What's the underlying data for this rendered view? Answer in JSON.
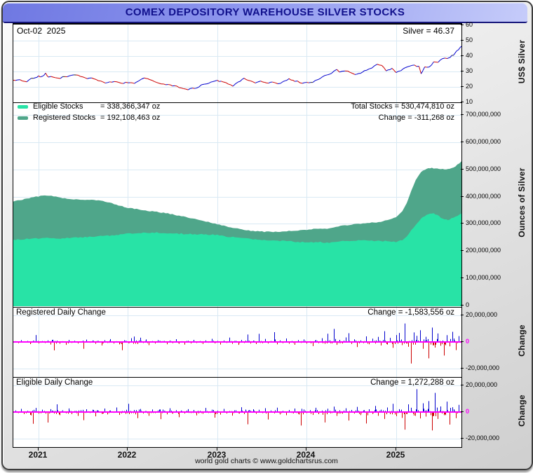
{
  "window": {
    "title": "COMEX DEPOSITORY WAREHOUSE SILVER STOCKS",
    "footer": "world gold charts © www.goldchartsrus.com"
  },
  "colors": {
    "eligible": "#28E3A6",
    "registered": "#4FA68A",
    "bar_up": "#0000CD",
    "bar_down": "#CC0000",
    "zero_line": "#FF00FF",
    "grid": "#d9e9f4",
    "title_navy": "#10108c"
  },
  "price_panel": {
    "date_label": "Oct-02  2025",
    "price_label": "Silver = 46.37",
    "axis_title": "US$ Silver",
    "ticks": [
      60,
      50,
      40,
      30,
      20,
      10
    ]
  },
  "stocks_panel": {
    "legend": [
      {
        "name": "Eligible Stocks",
        "value": "= 338,366,347 oz"
      },
      {
        "name": "Registered Stocks",
        "value": "= 192,108,463 oz"
      }
    ],
    "total_label": "Total Stocks = 530,474,810 oz",
    "change_label": "Change = -311,268 oz",
    "axis_title": "Ounces of Silver",
    "ticks": [
      {
        "label": "700,000,000",
        "v": 700
      },
      {
        "label": "600,000,000",
        "v": 600
      },
      {
        "label": "500,000,000",
        "v": 500
      },
      {
        "label": "400,000,000",
        "v": 400
      },
      {
        "label": "300,000,000",
        "v": 300
      },
      {
        "label": "200,000,000",
        "v": 200
      },
      {
        "label": "100,000,000",
        "v": 100
      },
      {
        "label": "0",
        "v": 0
      }
    ]
  },
  "registered_panel": {
    "title": "Registered Daily Change",
    "change_label": "Change = -1,583,556 oz",
    "axis_title": "Change",
    "ticks": [
      {
        "label": "20,000,000",
        "v": 20
      },
      {
        "label": "0",
        "v": 0,
        "magenta": true
      },
      {
        "label": "-20,000,000",
        "v": -20
      }
    ]
  },
  "eligible_panel": {
    "title": "Eligible Daily Change",
    "change_label": "Change = 1,272,288 oz",
    "axis_title": "Change",
    "ticks": [
      {
        "label": "20,000,000",
        "v": 20
      },
      {
        "label": "0",
        "v": 0,
        "magenta": true
      },
      {
        "label": "-20,000,000",
        "v": -20
      }
    ]
  },
  "x_axis": {
    "years": [
      "2021",
      "2022",
      "2023",
      "2024",
      "2025"
    ],
    "year_fracs": [
      0.0563,
      0.2558,
      0.4554,
      0.6549,
      0.8545
    ]
  },
  "chart_data": [
    {
      "id": "silver_price",
      "type": "line",
      "panel": "price",
      "title": "COMEX silver price, Oct 2020 - Oct 2025, last = 46.37",
      "x_range": [
        "Oct-2020",
        "Oct-2025"
      ],
      "ylim": [
        10,
        61
      ],
      "jitter": 0.45,
      "points": [
        [
          0.0,
          24.3
        ],
        [
          0.01,
          24.8
        ],
        [
          0.02,
          24.1
        ],
        [
          0.03,
          23.6
        ],
        [
          0.04,
          25.6
        ],
        [
          0.05,
          26.4
        ],
        [
          0.056,
          26.9
        ],
        [
          0.065,
          26.8
        ],
        [
          0.072,
          28.9
        ],
        [
          0.078,
          26.6
        ],
        [
          0.09,
          26.1
        ],
        [
          0.1,
          25.4
        ],
        [
          0.11,
          26.2
        ],
        [
          0.12,
          26.3
        ],
        [
          0.13,
          27.6
        ],
        [
          0.14,
          28.1
        ],
        [
          0.15,
          27.2
        ],
        [
          0.16,
          26.0
        ],
        [
          0.17,
          25.3
        ],
        [
          0.18,
          25.6
        ],
        [
          0.19,
          24.2
        ],
        [
          0.2,
          23.3
        ],
        [
          0.21,
          22.4
        ],
        [
          0.22,
          23.5
        ],
        [
          0.23,
          23.3
        ],
        [
          0.24,
          22.3
        ],
        [
          0.256,
          23.1
        ],
        [
          0.27,
          22.5
        ],
        [
          0.28,
          23.8
        ],
        [
          0.292,
          25.6
        ],
        [
          0.3,
          24.9
        ],
        [
          0.31,
          24.2
        ],
        [
          0.32,
          23.1
        ],
        [
          0.335,
          21.8
        ],
        [
          0.35,
          21.3
        ],
        [
          0.365,
          20.5
        ],
        [
          0.375,
          19.3
        ],
        [
          0.39,
          18.2
        ],
        [
          0.4,
          19.3
        ],
        [
          0.408,
          18.7
        ],
        [
          0.42,
          21.2
        ],
        [
          0.432,
          22.3
        ],
        [
          0.445,
          23.8
        ],
        [
          0.455,
          24.0
        ],
        [
          0.468,
          23.6
        ],
        [
          0.48,
          21.9
        ],
        [
          0.49,
          20.4
        ],
        [
          0.502,
          23.0
        ],
        [
          0.515,
          25.3
        ],
        [
          0.528,
          23.6
        ],
        [
          0.54,
          22.7
        ],
        [
          0.552,
          23.9
        ],
        [
          0.565,
          22.4
        ],
        [
          0.578,
          23.3
        ],
        [
          0.59,
          22.1
        ],
        [
          0.602,
          23.2
        ],
        [
          0.615,
          25.2
        ],
        [
          0.628,
          24.0
        ],
        [
          0.64,
          22.9
        ],
        [
          0.655,
          22.5
        ],
        [
          0.668,
          23.0
        ],
        [
          0.68,
          24.9
        ],
        [
          0.695,
          27.2
        ],
        [
          0.71,
          28.6
        ],
        [
          0.722,
          31.6
        ],
        [
          0.728,
          29.6
        ],
        [
          0.74,
          30.7
        ],
        [
          0.752,
          29.1
        ],
        [
          0.762,
          27.9
        ],
        [
          0.775,
          28.6
        ],
        [
          0.788,
          31.2
        ],
        [
          0.8,
          32.3
        ],
        [
          0.812,
          34.6
        ],
        [
          0.822,
          33.8
        ],
        [
          0.832,
          30.4
        ],
        [
          0.845,
          31.8
        ],
        [
          0.854,
          29.4
        ],
        [
          0.865,
          30.3
        ],
        [
          0.875,
          32.4
        ],
        [
          0.885,
          33.6
        ],
        [
          0.895,
          33.9
        ],
        [
          0.905,
          33.2
        ],
        [
          0.91,
          28.7
        ],
        [
          0.918,
          32.6
        ],
        [
          0.928,
          33.3
        ],
        [
          0.938,
          35.8
        ],
        [
          0.948,
          36.4
        ],
        [
          0.958,
          38.8
        ],
        [
          0.968,
          38.1
        ],
        [
          0.975,
          39.2
        ],
        [
          0.982,
          40.9
        ],
        [
          0.988,
          42.6
        ],
        [
          0.993,
          44.2
        ],
        [
          1.0,
          46.37
        ]
      ]
    },
    {
      "id": "warehouse_stocks",
      "type": "area",
      "stacking": "stacked",
      "panel": "main",
      "title": "COMEX depository warehouse silver stocks (million oz)",
      "unit": "million oz",
      "ylim": [
        0,
        755
      ],
      "jitter": 2.0,
      "x": [
        0.0,
        0.015,
        0.03,
        0.045,
        0.056,
        0.07,
        0.085,
        0.1,
        0.115,
        0.13,
        0.15,
        0.17,
        0.19,
        0.21,
        0.23,
        0.256,
        0.275,
        0.295,
        0.32,
        0.345,
        0.37,
        0.395,
        0.42,
        0.455,
        0.48,
        0.505,
        0.53,
        0.56,
        0.59,
        0.62,
        0.655,
        0.68,
        0.705,
        0.73,
        0.76,
        0.79,
        0.82,
        0.854,
        0.868,
        0.878,
        0.888,
        0.898,
        0.91,
        0.922,
        0.934,
        0.946,
        0.958,
        0.97,
        0.982,
        0.991,
        1.0
      ],
      "series": [
        {
          "name": "Eligible Stocks",
          "last": 338366347,
          "values": [
            242,
            243,
            245,
            246,
            246,
            247,
            248,
            246,
            248,
            249,
            250,
            252,
            254,
            256,
            258,
            264,
            266,
            267,
            268,
            266,
            264,
            262,
            261,
            259,
            253,
            248,
            244,
            241,
            238,
            235,
            232,
            233,
            230,
            237,
            239,
            240,
            237,
            234,
            240,
            252,
            275,
            298,
            320,
            333,
            340,
            331,
            320,
            314,
            324,
            331,
            338
          ]
        },
        {
          "name": "Registered Stocks",
          "last": 192108463,
          "values": [
            140,
            144,
            148,
            153,
            155,
            158,
            156,
            152,
            146,
            141,
            139,
            137,
            132,
            124,
            112,
            95,
            88,
            82,
            76,
            72,
            66,
            59,
            52,
            40,
            36,
            33,
            31,
            30,
            33,
            39,
            46,
            50,
            53,
            56,
            59,
            63,
            70,
            91,
            105,
            125,
            148,
            163,
            172,
            170,
            165,
            172,
            181,
            187,
            182,
            186,
            192
          ]
        }
      ],
      "total_last": 530474810,
      "change_last": -311268
    },
    {
      "id": "registered_daily_change",
      "type": "bar",
      "panel": "registered",
      "title": "Registered daily change (oz)",
      "ylim": [
        -26,
        26
      ],
      "unit": "million oz",
      "x0": 0.004,
      "dx": 0.00664,
      "noise_fill": 0.9,
      "change_last": -1583556,
      "values": [
        0.6,
        -0.9,
        1.4,
        -0.5,
        0.8,
        -1.6,
        0.9,
        5.2,
        -1.1,
        0.7,
        -0.8,
        1.2,
        -1.9,
        -6.3,
        0.9,
        -1.3,
        0.6,
        -2.2,
        1.5,
        -0.7,
        0.9,
        -1.1,
        0.5,
        -5.1,
        1.8,
        -0.6,
        1.1,
        -1.4,
        0.8,
        -2.6,
        1.3,
        -0.7,
        2.2,
        -1.2,
        0.6,
        -1.8,
        -6.2,
        1.0,
        -0.9,
        2.8,
        4.1,
        -1.5,
        3.2,
        -0.8,
        1.9,
        -2.4,
        0.7,
        -1.2,
        1.4,
        -0.6,
        0.8,
        -1.7,
        1.1,
        -0.9,
        2.1,
        -1.3,
        0.6,
        -2.0,
        0.9,
        -1.1,
        1.6,
        -0.8,
        0.7,
        -1.5,
        1.2,
        -0.6,
        2.4,
        -1.0,
        0.8,
        -1.9,
        1.1,
        -0.7,
        3.3,
        -1.4,
        0.9,
        -2.2,
        1.5,
        -0.8,
        5.6,
        -1.2,
        1.0,
        -1.6,
        6.1,
        -0.9,
        2.3,
        -1.1,
        0.7,
        7.4,
        -1.8,
        1.2,
        -0.9,
        2.6,
        -1.3,
        0.8,
        -2.1,
        1.4,
        -0.7,
        1.9,
        -1.2,
        0.6,
        -3.1,
        1.5,
        -0.9,
        2.8,
        -1.4,
        6.2,
        -1.0,
        9.8,
        -2.2,
        1.6,
        -1.1,
        3.4,
        6.6,
        -1.5,
        2.0,
        -3.8,
        1.2,
        -0.9,
        4.2,
        -1.7,
        2.5,
        -1.2,
        3.8,
        -2.6,
        8.1,
        -1.9,
        3.1,
        -4.4,
        5.2,
        6.8,
        -2.4,
        13.9,
        -3.6,
        -16.2,
        7.2,
        4.6,
        8.8,
        -5.1,
        3.9,
        -12.3,
        10.8,
        -4.2,
        6.4,
        -2.8,
        -10.2,
        5.1,
        -3.3,
        7.6,
        -6.1,
        4.4
      ]
    },
    {
      "id": "eligible_daily_change",
      "type": "bar",
      "panel": "eligible",
      "title": "Eligible daily change (oz)",
      "ylim": [
        -26,
        26
      ],
      "unit": "million oz",
      "x0": 0.004,
      "dx": 0.00664,
      "noise_fill": 1.1,
      "change_last": 1272288,
      "values": [
        1.2,
        -0.8,
        2.4,
        -1.5,
        0.9,
        -2.1,
        -8.8,
        3.1,
        -1.2,
        1.8,
        -0.6,
        -7.9,
        2.2,
        -1.1,
        5.8,
        -2.4,
        1.3,
        -0.9,
        2.7,
        -1.6,
        0.8,
        -2.9,
        1.4,
        -6.1,
        2.1,
        -0.7,
        1.7,
        -3.2,
        0.9,
        -1.3,
        2.6,
        -1.8,
        1.1,
        -0.6,
        3.4,
        -2.2,
        0.8,
        -1.4,
        6.2,
        -0.9,
        1.5,
        -4.6,
        2.3,
        -1.1,
        0.7,
        -2.8,
        1.9,
        -0.8,
        1.2,
        -5.3,
        0.9,
        -1.7,
        2.8,
        -1.2,
        1.4,
        -3.9,
        0.7,
        -1.1,
        2.2,
        -0.8,
        1.6,
        -2.5,
        0.9,
        -1.3,
        3.1,
        -0.7,
        1.8,
        -4.2,
        1.0,
        -1.9,
        2.4,
        -1.1,
        0.8,
        -2.7,
        1.3,
        -0.9,
        3.6,
        -1.5,
        -9.2,
        1.1,
        2.1,
        -1.3,
        1.7,
        -0.8,
        2.9,
        -5.6,
        1.2,
        -1.0,
        3.3,
        -1.8,
        0.9,
        -2.4,
        1.5,
        -0.7,
        2.6,
        -1.2,
        -10.1,
        1.9,
        -0.8,
        1.4,
        -2.2,
        3.2,
        -1.6,
        1.1,
        -7.8,
        2.5,
        -1.0,
        4.1,
        -2.9,
        1.3,
        -1.2,
        2.8,
        -6.4,
        1.6,
        -1.1,
        3.9,
        -2.3,
        1.2,
        -8.6,
        2.1,
        -1.4,
        4.6,
        -2.8,
        1.8,
        -5.2,
        3.4,
        -1.6,
        6.2,
        -3.1,
        2.2,
        -4.4,
        -13.2,
        5.8,
        3.2,
        -2.6,
        17.2,
        -4.8,
        6.6,
        -3.4,
        8.2,
        -13.8,
        14.4,
        -5.2,
        4.2,
        -2.4,
        7.8,
        -9.4,
        3.6,
        -4.6,
        5.4
      ]
    }
  ]
}
